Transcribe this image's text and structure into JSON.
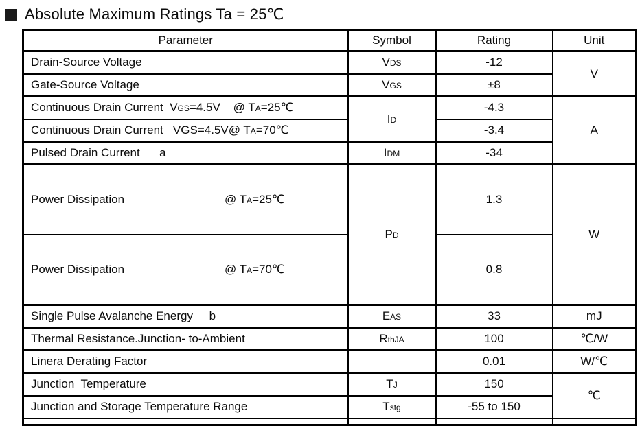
{
  "title": {
    "text": "Absolute Maximum Ratings Ta = 25℃"
  },
  "icons": {
    "section_bullet": "filled-black-square"
  },
  "table": {
    "headers": [
      "Parameter",
      "Symbol",
      "Rating",
      "Unit"
    ],
    "rows": [
      {
        "param": "Drain-Source Voltage",
        "symbol_parts": [
          {
            "t": "V"
          },
          {
            "s": "DS"
          }
        ],
        "rating": "-12",
        "unit": "V"
      },
      {
        "param": "Gate-Source Voltage",
        "symbol_parts": [
          {
            "t": "V"
          },
          {
            "s": "GS"
          }
        ],
        "rating": "±8"
      },
      {
        "param_parts": [
          {
            "t": "Continuous Drain Current  V"
          },
          {
            "s": "GS"
          },
          {
            "t": "=4.5V    @ T"
          },
          {
            "s": "A"
          },
          {
            "t": "=25℃"
          }
        ],
        "symbol_parts": [
          {
            "t": "I"
          },
          {
            "s": "D"
          }
        ],
        "rating": "-4.3",
        "unit": "A"
      },
      {
        "param_parts": [
          {
            "t": "Continuous Drain Current   VGS=4.5V@ T"
          },
          {
            "s": "A"
          },
          {
            "t": "=70℃"
          }
        ],
        "rating": "-3.4"
      },
      {
        "param": "Pulsed Drain Current      a",
        "symbol_parts": [
          {
            "t": "I"
          },
          {
            "s": "DM"
          }
        ],
        "rating": "-34"
      },
      {
        "param": "Power Dissipation",
        "cond_parts": [
          {
            "t": "@ T"
          },
          {
            "s": "A"
          },
          {
            "t": "=25℃"
          }
        ],
        "symbol_parts": [
          {
            "t": "P"
          },
          {
            "s": "D"
          }
        ],
        "rating": "1.3",
        "unit": "W"
      },
      {
        "param": "Power Dissipation",
        "cond_parts": [
          {
            "t": "@ T"
          },
          {
            "s": "A"
          },
          {
            "t": "=70℃"
          }
        ],
        "rating": "0.8"
      },
      {
        "param": "Single Pulse Avalanche Energy     b",
        "symbol_parts": [
          {
            "t": "E"
          },
          {
            "s": "AS"
          }
        ],
        "rating": "33",
        "unit": "mJ"
      },
      {
        "param": "Thermal Resistance.Junction- to-Ambient",
        "symbol_parts": [
          {
            "t": "R"
          },
          {
            "s": "thJA"
          }
        ],
        "rating": "100",
        "unit": "℃/W"
      },
      {
        "param": "Linera Derating Factor",
        "symbol_parts": [],
        "rating": "0.01",
        "unit": "W/℃"
      },
      {
        "param": "Junction  Temperature",
        "symbol_parts": [
          {
            "t": "T"
          },
          {
            "s": "J"
          }
        ],
        "rating": "150",
        "unit": "℃"
      },
      {
        "param": "Junction and Storage Temperature Range",
        "symbol_parts": [
          {
            "t": "T"
          },
          {
            "s": "stg"
          }
        ],
        "rating": "-55 to 150"
      }
    ]
  }
}
